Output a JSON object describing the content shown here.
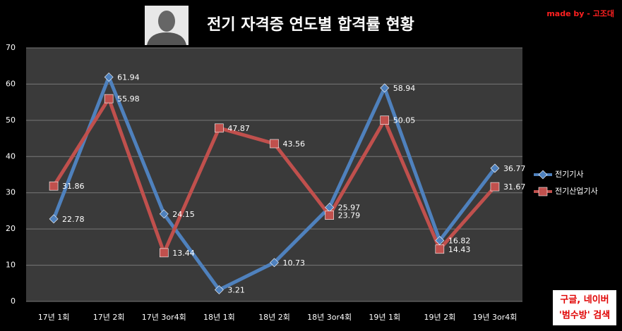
{
  "chart_data": {
    "type": "line",
    "title": "전기 자격증 연도별 합격률 현황",
    "credit": "made by - 고조대",
    "note": [
      "구글, 네이버",
      "'범수방' 검색"
    ],
    "categories": [
      "17년 1회",
      "17년 2회",
      "17년 3or4회",
      "18년 1회",
      "18년 2회",
      "18년 3or4회",
      "19년 1회",
      "19년 2회",
      "19년 3or4회"
    ],
    "series": [
      {
        "name": "전기기사",
        "color": "#4f81bd",
        "marker": "diamond",
        "values": [
          22.78,
          61.94,
          24.15,
          3.21,
          10.73,
          25.97,
          58.94,
          16.82,
          36.77
        ]
      },
      {
        "name": "전기산업기사",
        "color": "#c0504d",
        "marker": "square",
        "values": [
          31.86,
          55.98,
          13.44,
          47.87,
          43.56,
          23.79,
          50.05,
          14.43,
          31.67
        ]
      }
    ],
    "ylim": [
      0,
      70
    ],
    "yticks": [
      0,
      10,
      20,
      30,
      40,
      50,
      60,
      70
    ],
    "grid": true,
    "legend": "right"
  }
}
